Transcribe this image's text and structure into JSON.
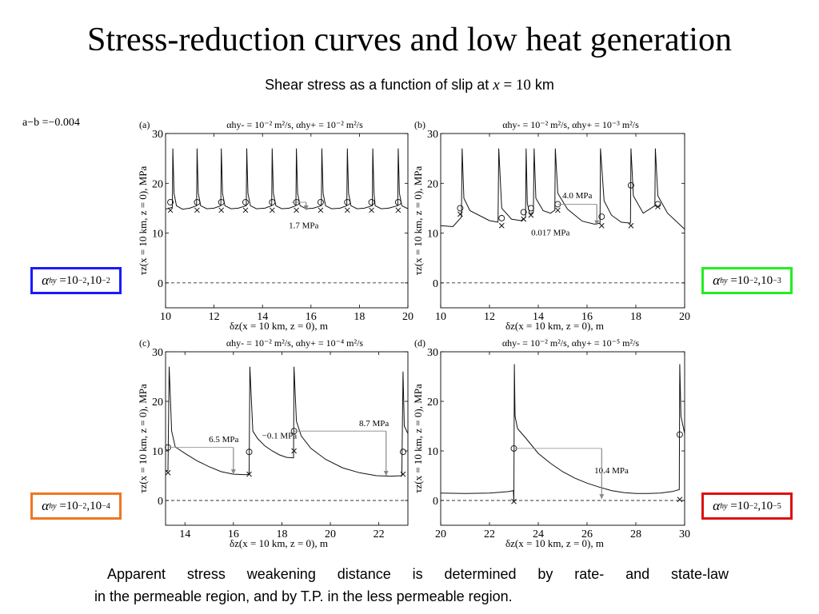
{
  "slide": {
    "title": "Stress-reduction curves and low heat generation",
    "subtitle_text": "Shear stress as a function of slip at",
    "subtitle_var": "x",
    "subtitle_eq": "= 10",
    "subtitle_unit": "km",
    "ab_label": "a−b =−0.004",
    "caption_line1": "Apparent stress weakening distance is determined by rate- and state-law",
    "caption_line2": "in the permeable region, and by T.P. in the less permeable region.",
    "legend_boxes": [
      {
        "symbol": "α",
        "sub": "hy",
        "text": "=10",
        "exp1": "−2",
        "sep": ",10",
        "exp2": "−2",
        "color": "#1a1aff"
      },
      {
        "symbol": "α",
        "sub": "hy",
        "text": "=10",
        "exp1": "−2",
        "sep": ",10",
        "exp2": "−3",
        "color": "#22ee22"
      },
      {
        "symbol": "α",
        "sub": "hy",
        "text": "=10",
        "exp1": "−2",
        "sep": ",10",
        "exp2": "−4",
        "color": "#ee7722"
      },
      {
        "symbol": "α",
        "sub": "hy",
        "text": "=10",
        "exp1": "−2",
        "sep": ",10",
        "exp2": "−5",
        "color": "#dd1111"
      }
    ]
  },
  "chart_data": [
    {
      "type": "line",
      "panel": "(a)",
      "title": "αhy- = 10⁻² m²/s, αhy+ = 10⁻² m²/s",
      "xlabel": "δz(x = 10 km, z = 0), m",
      "ylabel": "τz(x = 10 km, z = 0), MPa",
      "xlim": [
        10,
        20
      ],
      "ylim": [
        -5,
        30
      ],
      "xticks": [
        10,
        12,
        14,
        16,
        18,
        20
      ],
      "yticks": [
        0,
        10,
        20,
        30
      ],
      "dashed_zero": true,
      "series_desc": "periodic stick-slip: spikes to ~27 MPa, then drop to ~15 MPa",
      "x": [
        10.0,
        10.28,
        10.3,
        10.35,
        10.45,
        10.7,
        11.0,
        11.28,
        11.3,
        11.35,
        11.45,
        11.7,
        12.0,
        12.28,
        12.3,
        12.35,
        12.45,
        12.7,
        13.0,
        13.33,
        13.35,
        13.4,
        13.5,
        13.75,
        14.1,
        14.38,
        14.4,
        14.45,
        14.55,
        14.8,
        15.1,
        15.38,
        15.4,
        15.45,
        15.55,
        15.8,
        16.1,
        16.43,
        16.45,
        16.5,
        16.6,
        16.85,
        17.2,
        17.48,
        17.5,
        17.55,
        17.65,
        17.9,
        18.2,
        18.53,
        18.55,
        18.6,
        18.65,
        18.9,
        19.2,
        19.58,
        19.6,
        19.65,
        19.75,
        20.0
      ],
      "y": [
        14.8,
        15.2,
        27.0,
        18.0,
        15.5,
        14.8,
        15.0,
        15.5,
        27.0,
        18.0,
        15.5,
        14.9,
        15.0,
        15.5,
        27.0,
        18.0,
        15.5,
        14.9,
        15.0,
        15.5,
        27.0,
        18.0,
        15.5,
        14.9,
        15.0,
        15.5,
        27.0,
        18.0,
        15.5,
        14.9,
        15.0,
        15.5,
        27.0,
        18.0,
        15.5,
        14.9,
        15.0,
        15.5,
        27.0,
        18.0,
        15.5,
        14.9,
        15.0,
        15.5,
        27.0,
        18.0,
        15.5,
        14.9,
        15.0,
        15.5,
        27.0,
        18.0,
        15.5,
        14.9,
        15.0,
        15.5,
        27.0,
        18.0,
        15.5,
        14.9
      ],
      "circles": [
        [
          10.2,
          16.2
        ],
        [
          11.3,
          16.2
        ],
        [
          12.3,
          16.2
        ],
        [
          13.3,
          16.2
        ],
        [
          14.4,
          16.2
        ],
        [
          15.4,
          16.2
        ],
        [
          16.4,
          16.2
        ],
        [
          17.5,
          16.2
        ],
        [
          18.5,
          16.2
        ],
        [
          19.6,
          16.2
        ]
      ],
      "crosses": [
        [
          10.2,
          14.6
        ],
        [
          11.3,
          14.6
        ],
        [
          12.3,
          14.6
        ],
        [
          13.3,
          14.6
        ],
        [
          14.4,
          14.6
        ],
        [
          15.4,
          14.6
        ],
        [
          16.4,
          14.6
        ],
        [
          17.5,
          14.6
        ],
        [
          18.5,
          14.6
        ],
        [
          19.6,
          14.6
        ]
      ],
      "annotations": [
        {
          "text": "1.7 MPa",
          "x": 15.7,
          "y": 11.0
        }
      ]
    },
    {
      "type": "line",
      "panel": "(b)",
      "title": "αhy- = 10⁻² m²/s, αhy+ = 10⁻³ m²/s",
      "xlabel": "δz(x = 10 km, z = 0), m",
      "ylabel": "τz(x = 10 km, z = 0), MPa",
      "xlim": [
        10,
        20
      ],
      "ylim": [
        -5,
        30
      ],
      "xticks": [
        10,
        12,
        14,
        16,
        18,
        20
      ],
      "yticks": [
        0,
        10,
        20,
        30
      ],
      "dashed_zero": true,
      "series_desc": "irregular stick-slip events",
      "x": [
        10.0,
        10.5,
        10.85,
        10.88,
        10.95,
        11.2,
        12.0,
        12.35,
        12.38,
        12.5,
        12.9,
        13.3,
        13.48,
        13.5,
        13.55,
        13.65,
        13.8,
        13.83,
        13.9,
        14.2,
        14.5,
        14.68,
        14.7,
        14.8,
        15.2,
        15.8,
        16.3,
        16.53,
        16.55,
        16.7,
        17.0,
        17.4,
        17.78,
        17.8,
        17.9,
        18.3,
        18.78,
        18.8,
        18.9,
        19.3,
        20.0
      ],
      "y": [
        11.5,
        11.3,
        13.2,
        27.0,
        17.0,
        14.5,
        12.5,
        12.2,
        27.0,
        15.0,
        12.8,
        12.5,
        13.2,
        27.0,
        16.0,
        13.8,
        14.2,
        27.0,
        17.0,
        14.5,
        14.0,
        14.6,
        27.0,
        18.0,
        14.8,
        12.4,
        11.8,
        12.0,
        27.0,
        16.5,
        13.6,
        12.2,
        12.0,
        27.0,
        17.5,
        14.0,
        15.5,
        27.0,
        17.5,
        14.0,
        10.8
      ],
      "circles": [
        [
          10.8,
          15.0
        ],
        [
          12.5,
          13.0
        ],
        [
          13.4,
          14.2
        ],
        [
          13.7,
          15.0
        ],
        [
          14.8,
          15.8
        ],
        [
          16.6,
          13.3
        ],
        [
          17.8,
          19.6
        ],
        [
          18.9,
          15.8
        ]
      ],
      "crosses": [
        [
          10.8,
          13.8
        ],
        [
          12.5,
          11.5
        ],
        [
          13.4,
          12.8
        ],
        [
          13.7,
          13.6
        ],
        [
          14.8,
          14.6
        ],
        [
          16.6,
          11.5
        ],
        [
          17.8,
          11.5
        ],
        [
          18.9,
          15.3
        ]
      ],
      "annotations": [
        {
          "text": "4.0 MPa",
          "x": 15.6,
          "y": 17.0
        },
        {
          "text": "0.017 MPa",
          "x": 14.5,
          "y": 9.5
        }
      ]
    },
    {
      "type": "line",
      "panel": "(c)",
      "title": "αhy- = 10⁻² m²/s, αhy+ = 10⁻⁴ m²/s",
      "xlabel": "δz(x = 10 km, z = 0), m",
      "ylabel": "τz(x = 10 km, z = 0), MPa",
      "xlim": [
        13.2,
        23.2
      ],
      "ylim": [
        -5,
        30
      ],
      "xticks": [
        14,
        16,
        18,
        20,
        22
      ],
      "yticks": [
        0,
        10,
        20,
        30
      ],
      "dashed_zero": true,
      "series_desc": "long stress decay after each slip event",
      "x": [
        13.2,
        13.3,
        13.35,
        13.45,
        13.6,
        14.0,
        14.5,
        15.0,
        15.5,
        16.0,
        16.5,
        16.65,
        16.68,
        16.8,
        17.0,
        17.3,
        17.6,
        17.9,
        18.2,
        18.48,
        18.5,
        18.6,
        18.8,
        19.2,
        19.8,
        20.5,
        21.2,
        21.9,
        22.5,
        22.95,
        23.0,
        23.05,
        23.2
      ],
      "y": [
        6.0,
        6.0,
        27.0,
        14.0,
        10.8,
        9.5,
        8.0,
        6.8,
        5.8,
        5.3,
        5.2,
        5.3,
        27.0,
        14.0,
        12.5,
        11.0,
        10.0,
        9.2,
        8.7,
        8.6,
        27.0,
        16.0,
        13.0,
        10.5,
        8.3,
        6.6,
        5.6,
        5.0,
        4.9,
        5.0,
        26.0,
        15.0,
        13.5
      ],
      "circles": [
        [
          13.3,
          10.7
        ],
        [
          16.65,
          9.8
        ],
        [
          18.5,
          14.0
        ],
        [
          23.0,
          9.8
        ]
      ],
      "crosses": [
        [
          13.3,
          5.6
        ],
        [
          16.65,
          5.3
        ],
        [
          18.5,
          10.0
        ],
        [
          23.0,
          5.3
        ]
      ],
      "annotations": [
        {
          "text": "6.5 MPa",
          "x": 15.6,
          "y": 11.8
        },
        {
          "text": "−0.1 MPa",
          "x": 17.9,
          "y": 12.5
        },
        {
          "text": "8.7 MPa",
          "x": 21.8,
          "y": 15.0
        }
      ]
    },
    {
      "type": "line",
      "panel": "(d)",
      "title": "αhy- = 10⁻² m²/s, αhy+ = 10⁻⁵ m²/s",
      "xlabel": "δz(x = 10 km, z = 0), m",
      "ylabel": "τz(x = 10 km, z = 0), MPa",
      "xlim": [
        20,
        30
      ],
      "ylim": [
        -5,
        30
      ],
      "xticks": [
        20,
        22,
        24,
        26,
        28,
        30
      ],
      "yticks": [
        0,
        10,
        20,
        30
      ],
      "dashed_zero": true,
      "series_desc": "single large slip event with long decay",
      "x": [
        20.0,
        21.0,
        22.0,
        22.8,
        22.98,
        23.0,
        23.02,
        23.05,
        23.15,
        23.5,
        24.0,
        24.5,
        25.0,
        25.5,
        26.0,
        26.5,
        27.0,
        27.5,
        28.0,
        28.5,
        29.0,
        29.5,
        29.78,
        29.8,
        29.85,
        30.0
      ],
      "y": [
        1.5,
        1.4,
        1.5,
        1.8,
        2.0,
        -0.2,
        27.5,
        17.0,
        14.5,
        12.5,
        9.5,
        7.5,
        5.8,
        4.5,
        3.5,
        2.7,
        2.0,
        1.6,
        1.4,
        1.4,
        1.5,
        1.8,
        2.2,
        27.5,
        17.0,
        13.5
      ],
      "circles": [
        [
          23.0,
          10.5
        ],
        [
          29.8,
          13.3
        ]
      ],
      "crosses": [
        [
          23.0,
          -0.2
        ],
        [
          29.8,
          0.2
        ]
      ],
      "annotations": [
        {
          "text": "10.4 MPa",
          "x": 27.0,
          "y": 5.5
        }
      ]
    }
  ]
}
